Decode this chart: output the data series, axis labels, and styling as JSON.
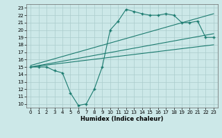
{
  "xlabel": "Humidex (Indice chaleur)",
  "bg_color": "#cce8e8",
  "line_color": "#1a7a6e",
  "xlim": [
    -0.5,
    23.5
  ],
  "ylim": [
    9.5,
    23.5
  ],
  "xticks": [
    0,
    1,
    2,
    3,
    4,
    5,
    6,
    7,
    8,
    9,
    10,
    11,
    12,
    13,
    14,
    15,
    16,
    17,
    18,
    19,
    20,
    21,
    22,
    23
  ],
  "yticks": [
    10,
    11,
    12,
    13,
    14,
    15,
    16,
    17,
    18,
    19,
    20,
    21,
    22,
    23
  ],
  "line1_x": [
    0,
    1,
    2,
    3,
    4,
    5,
    6,
    7,
    8,
    9,
    10,
    11,
    12,
    13,
    14,
    15,
    16,
    17,
    18,
    19,
    20,
    21,
    22,
    23
  ],
  "line1_y": [
    15.0,
    15.0,
    15.0,
    14.5,
    14.2,
    11.5,
    9.8,
    10.0,
    12.0,
    15.0,
    20.0,
    21.2,
    22.8,
    22.5,
    22.2,
    22.0,
    22.0,
    22.2,
    22.0,
    21.0,
    21.0,
    21.2,
    19.0,
    19.0
  ],
  "line2_x": [
    0,
    23
  ],
  "line2_y": [
    15.0,
    18.0
  ],
  "line3_x": [
    0,
    23
  ],
  "line3_y": [
    15.0,
    19.5
  ],
  "line4_x": [
    0,
    23
  ],
  "line4_y": [
    15.2,
    22.2
  ],
  "grid_color": "#aacccc",
  "tick_fontsize": 5.0,
  "xlabel_fontsize": 6.0
}
